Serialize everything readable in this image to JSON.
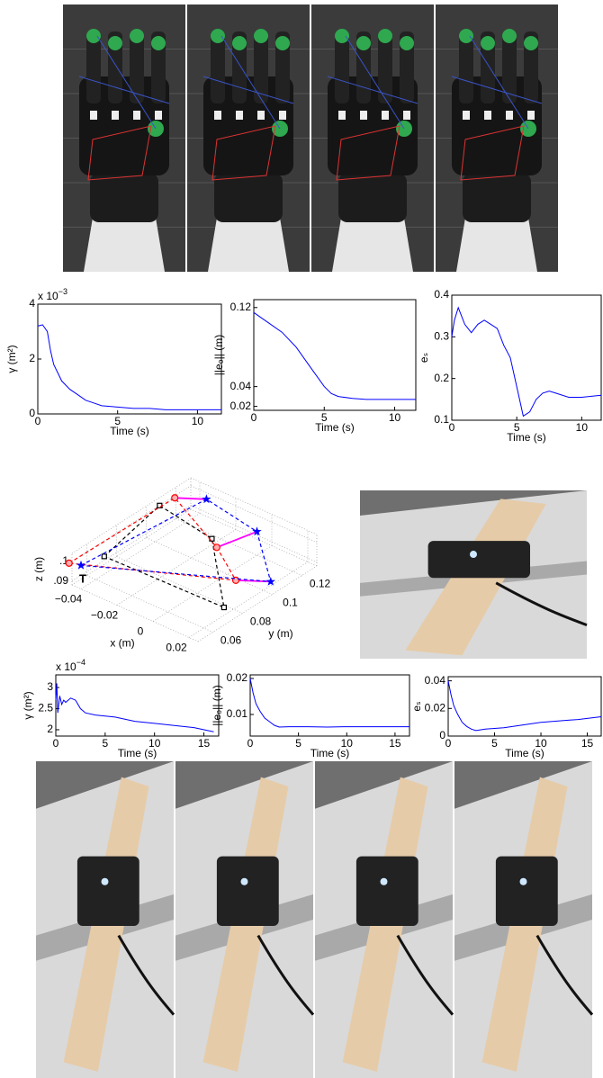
{
  "chart_data": [
    {
      "type": "line",
      "color": "#0000ff",
      "xlabel": "Time (s)",
      "ylabel": "γ (m²)",
      "y_scale": {
        "base": "x 10",
        "exponent": "−3"
      },
      "xlim": [
        0,
        11.5
      ],
      "ylim": [
        0,
        4
      ],
      "xticks": [
        0,
        5,
        10
      ],
      "yticks": [
        0,
        2,
        4
      ],
      "x": [
        0,
        0.3,
        0.6,
        0.8,
        1,
        1.5,
        2,
        2.5,
        3,
        3.5,
        4,
        5,
        6,
        7,
        8,
        9,
        10,
        11.5
      ],
      "values": [
        3.2,
        3.25,
        3.0,
        2.3,
        1.8,
        1.2,
        0.9,
        0.7,
        0.5,
        0.4,
        0.3,
        0.25,
        0.2,
        0.2,
        0.15,
        0.15,
        0.15,
        0.15
      ]
    },
    {
      "type": "line",
      "color": "#0000ff",
      "xlabel": "Time (s)",
      "ylabel": "||e₀|| (m)",
      "xlim": [
        0,
        11.5
      ],
      "ylim": [
        0.016,
        0.128
      ],
      "xticks": [
        0,
        5,
        10
      ],
      "yticks": [
        0.02,
        0.04,
        0.12
      ],
      "x": [
        0,
        0.5,
        1,
        2,
        3,
        4,
        5,
        5.5,
        6,
        7,
        8,
        9,
        10,
        11.5
      ],
      "values": [
        0.115,
        0.11,
        0.105,
        0.095,
        0.08,
        0.06,
        0.04,
        0.033,
        0.03,
        0.028,
        0.027,
        0.027,
        0.027,
        0.027
      ]
    },
    {
      "type": "line",
      "color": "#0000ff",
      "xlabel": "Time (s)",
      "ylabel": "eₛ",
      "xlim": [
        0,
        11.5
      ],
      "ylim": [
        0.1,
        0.4
      ],
      "xticks": [
        0,
        5,
        10
      ],
      "yticks": [
        0.1,
        0.2,
        0.3,
        0.4
      ],
      "x": [
        0,
        0.2,
        0.5,
        1,
        1.5,
        2,
        2.5,
        3,
        3.5,
        4,
        4.5,
        5,
        5.5,
        6,
        6.5,
        7,
        7.5,
        8,
        9,
        10,
        11.5
      ],
      "values": [
        0.3,
        0.34,
        0.37,
        0.33,
        0.31,
        0.33,
        0.34,
        0.33,
        0.32,
        0.28,
        0.25,
        0.18,
        0.11,
        0.12,
        0.15,
        0.165,
        0.17,
        0.165,
        0.155,
        0.155,
        0.16
      ]
    },
    {
      "type": "scatter3d",
      "xlabel": "x (m)",
      "ylabel": "y (m)",
      "zlabel": "z (m)",
      "annotation": "T",
      "xlim": [
        -0.045,
        0.025
      ],
      "ylim": [
        0.05,
        0.13
      ],
      "zlim": [
        0.088,
        0.104
      ],
      "xticks": [
        {
          "value": -0.04,
          "label": "−0.04"
        },
        {
          "value": -0.02,
          "label": "−0.02"
        },
        0,
        0.02
      ],
      "yticks": [
        0.06,
        0.08,
        0.1,
        0.12
      ],
      "zticks": [
        {
          "value": 0.09,
          "label": ".09"
        },
        {
          "value": 0.1,
          "label": ".1"
        }
      ],
      "series": [
        {
          "color": "#ff00ff",
          "dashed": false,
          "x": [
            -0.044,
            -0.033,
            null,
            -0.005,
            0,
            null,
            0.013,
            0.02
          ],
          "y": [
            0.118,
            0.126,
            null,
            0.099,
            0.12,
            null,
            0.09,
            0.105
          ],
          "z": [
            0.1,
            0.1,
            null,
            0.1,
            0.1,
            null,
            0.095,
            0.09
          ]
        },
        {
          "color": "#000000",
          "dashed": true,
          "closed": true,
          "marker": "square",
          "x": [
            -0.037,
            -0.045,
            -0.011,
            0.018
          ],
          "y": [
            0.062,
            0.109,
            0.103,
            0.076
          ],
          "z": [
            0.1,
            0.1,
            0.1,
            0.09
          ]
        },
        {
          "color": "#ff0000",
          "dashed": true,
          "closed": true,
          "marker": "circle",
          "x": [
            -0.045,
            -0.044,
            -0.005,
            0.013
          ],
          "y": [
            0.048,
            0.118,
            0.099,
            0.09
          ],
          "z": [
            0.1,
            0.1,
            0.1,
            0.095
          ]
        },
        {
          "color": "#0000ff",
          "dashed": true,
          "closed": true,
          "marker": "star",
          "x": [
            -0.04,
            -0.033,
            0,
            0.02
          ],
          "y": [
            0.05,
            0.126,
            0.12,
            0.105
          ],
          "z": [
            0.1,
            0.1,
            0.1,
            0.09
          ]
        }
      ]
    },
    {
      "type": "line",
      "color": "#0000ff",
      "xlabel": "Time (s)",
      "ylabel": "γ (m²)",
      "y_scale": {
        "base": "x 10",
        "exponent": "−4"
      },
      "xlim": [
        0,
        16.5
      ],
      "ylim": [
        1.85,
        3.3
      ],
      "xticks": [
        0,
        5,
        10,
        15
      ],
      "yticks": [
        2,
        2.5,
        3
      ],
      "x": [
        0,
        0.1,
        0.2,
        0.4,
        0.6,
        0.8,
        1,
        1.5,
        2,
        2.5,
        3,
        4,
        6,
        8,
        10,
        12,
        14,
        16
      ],
      "values": [
        2.7,
        3.1,
        2.4,
        2.8,
        2.6,
        2.7,
        2.65,
        2.75,
        2.7,
        2.5,
        2.4,
        2.35,
        2.3,
        2.2,
        2.15,
        2.1,
        2.05,
        1.95
      ]
    },
    {
      "type": "line",
      "color": "#0000ff",
      "xlabel": "Time (s)",
      "ylabel": "||e₀|| (m)",
      "xlim": [
        0,
        16.5
      ],
      "ylim": [
        0.004,
        0.021
      ],
      "xticks": [
        0,
        5,
        10,
        15
      ],
      "yticks": [
        0.01,
        0.02
      ],
      "x": [
        0,
        0.3,
        0.6,
        1,
        1.5,
        2,
        2.5,
        3,
        4,
        6,
        8,
        10,
        12,
        14,
        16.5
      ],
      "values": [
        0.02,
        0.016,
        0.013,
        0.011,
        0.009,
        0.008,
        0.007,
        0.0065,
        0.0066,
        0.0066,
        0.0065,
        0.0066,
        0.0066,
        0.0066,
        0.0066
      ]
    },
    {
      "type": "line",
      "color": "#0000ff",
      "xlabel": "Time (s)",
      "ylabel": "eₛ",
      "xlim": [
        0,
        16.5
      ],
      "ylim": [
        0,
        0.043
      ],
      "xticks": [
        0,
        5,
        10,
        15
      ],
      "yticks": [
        0,
        0.02,
        0.04
      ],
      "x": [
        0,
        0.3,
        0.6,
        1,
        1.5,
        2,
        2.5,
        3,
        4,
        6,
        8,
        10,
        12,
        14,
        16.5
      ],
      "values": [
        0.04,
        0.03,
        0.022,
        0.016,
        0.01,
        0.007,
        0.005,
        0.004,
        0.005,
        0.006,
        0.008,
        0.01,
        0.011,
        0.012,
        0.014
      ]
    }
  ]
}
